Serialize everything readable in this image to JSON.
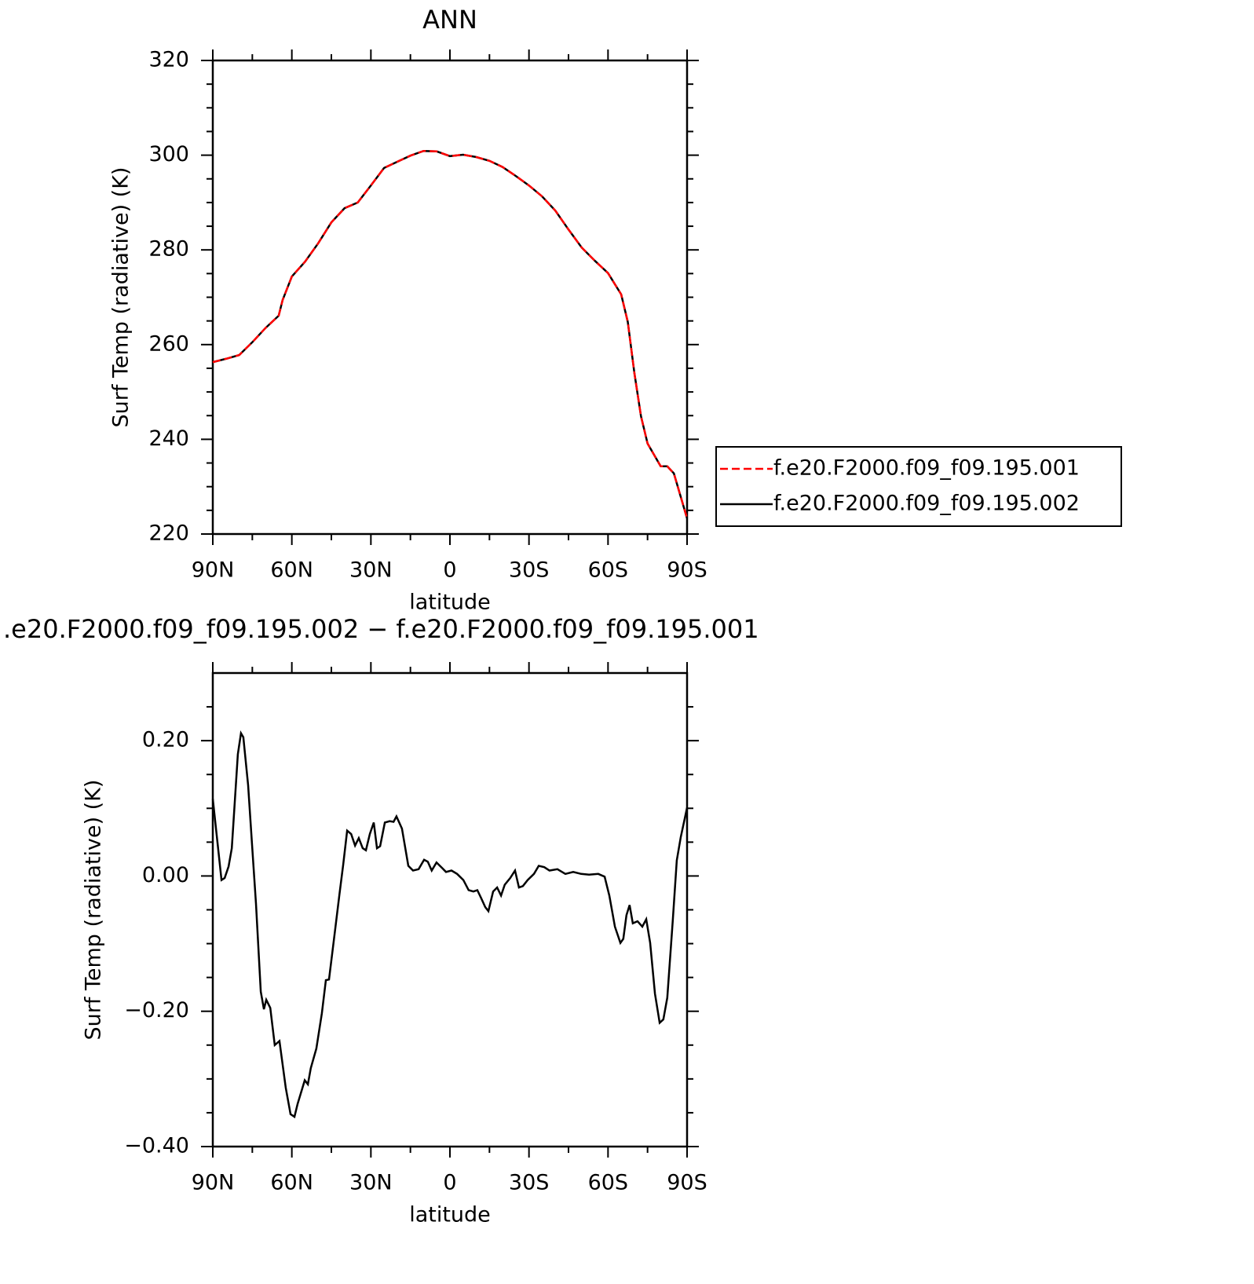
{
  "chart_data": [
    {
      "type": "line",
      "title": "ANN",
      "xlabel": "latitude",
      "ylabel": "Surf Temp (radiative) (K)",
      "xlim": [
        90,
        -90
      ],
      "xticks": [
        {
          "value": 90,
          "label": "90N"
        },
        {
          "value": 60,
          "label": "60N"
        },
        {
          "value": 30,
          "label": "30N"
        },
        0,
        {
          "value": -30,
          "label": "30S"
        },
        {
          "value": -60,
          "label": "60S"
        },
        {
          "value": -90,
          "label": "90S"
        }
      ],
      "xminor": [
        75,
        45,
        15,
        -15,
        -45,
        -75
      ],
      "ylim": [
        220,
        320
      ],
      "yticks": [
        220,
        240,
        260,
        280,
        300,
        320
      ],
      "yminor": [
        225,
        230,
        235,
        245,
        250,
        255,
        265,
        270,
        275,
        285,
        290,
        295,
        305,
        310,
        315
      ],
      "legend": "right",
      "x": [
        90,
        85,
        80,
        75,
        70,
        65,
        63.5,
        60,
        55,
        50,
        45,
        40,
        35,
        30,
        25,
        20,
        15,
        10,
        5,
        0,
        -5,
        -10,
        -15,
        -20,
        -25,
        -30,
        -35,
        -40,
        -45,
        -50,
        -55,
        -60,
        -65,
        -67.5,
        -70,
        -72.5,
        -75,
        -80,
        -82.5,
        -85,
        -90
      ],
      "series": [
        {
          "name": "f.e20.F2000.f09_f09.195.001",
          "color": "#ff0000",
          "dash": true,
          "values": [
            256.3,
            257.0,
            257.8,
            260.5,
            263.5,
            266.1,
            269.4,
            274.4,
            277.5,
            281.4,
            285.8,
            288.8,
            290.0,
            293.6,
            297.3,
            298.6,
            299.9,
            300.9,
            300.8,
            299.8,
            300.1,
            299.6,
            298.8,
            297.5,
            295.6,
            293.6,
            291.3,
            288.3,
            284.3,
            280.5,
            277.7,
            275.1,
            270.6,
            264.8,
            254.0,
            244.9,
            239.1,
            234.3,
            234.3,
            232.8,
            223.3
          ]
        },
        {
          "name": "f.e20.F2000.f09_f09.195.002",
          "color": "#000000",
          "dash": false,
          "values": [
            256.3,
            257.0,
            257.8,
            260.5,
            263.5,
            266.1,
            269.4,
            274.4,
            277.5,
            281.4,
            285.8,
            288.8,
            290.0,
            293.6,
            297.3,
            298.6,
            299.9,
            300.9,
            300.8,
            299.8,
            300.1,
            299.6,
            298.8,
            297.5,
            295.6,
            293.6,
            291.3,
            288.3,
            284.3,
            280.5,
            277.7,
            275.1,
            270.6,
            264.8,
            254.0,
            244.9,
            239.1,
            234.3,
            234.3,
            232.8,
            223.3
          ]
        }
      ]
    },
    {
      "type": "line",
      "title": ".e20.F2000.f09_f09.195.002 − f.e20.F2000.f09_f09.195.001",
      "xlabel": "latitude",
      "ylabel": "Surf Temp (radiative) (K)",
      "xlim": [
        90,
        -90
      ],
      "xticks": [
        {
          "value": 90,
          "label": "90N"
        },
        {
          "value": 60,
          "label": "60N"
        },
        {
          "value": 30,
          "label": "30N"
        },
        0,
        {
          "value": -30,
          "label": "30S"
        },
        {
          "value": -60,
          "label": "60S"
        },
        {
          "value": -90,
          "label": "90S"
        }
      ],
      "xminor": [
        75,
        45,
        15,
        -15,
        -45,
        -75
      ],
      "ylim": [
        -0.4,
        0.3
      ],
      "yticks": [
        {
          "value": -0.4,
          "label": "−0.40"
        },
        {
          "value": -0.2,
          "label": "−0.20"
        },
        {
          "value": 0,
          "label": "0.00"
        },
        {
          "value": 0.2,
          "label": "0.20"
        }
      ],
      "yminor": [
        -0.35,
        -0.3,
        -0.25,
        -0.15,
        -0.1,
        -0.05,
        0.05,
        0.1,
        0.15,
        0.25
      ],
      "x": [
        90,
        86.7,
        85.5,
        84.0,
        82.8,
        80.5,
        79.3,
        78.4,
        76.6,
        75.1,
        73.6,
        71.8,
        70.6,
        69.7,
        68.2,
        66.5,
        64.7,
        62.3,
        60.5,
        59.0,
        57.8,
        55.1,
        53.9,
        52.8,
        50.7,
        48.6,
        47.1,
        45.9,
        43.8,
        42.0,
        40.5,
        39.0,
        37.5,
        36.0,
        34.6,
        33.1,
        31.9,
        30.4,
        28.9,
        27.7,
        26.5,
        24.7,
        22.9,
        21.4,
        20.3,
        18.2,
        15.8,
        14.0,
        11.9,
        9.8,
        8.4,
        6.9,
        5.1,
        3.0,
        1.5,
        -0.6,
        -2.7,
        -5.1,
        -7.1,
        -8.9,
        -10.4,
        -11.9,
        -13.4,
        -14.6,
        -16.4,
        -17.9,
        -19.4,
        -20.8,
        -22.9,
        -24.7,
        -26.2,
        -27.7,
        -29.5,
        -31.9,
        -33.7,
        -35.8,
        -37.8,
        -40.8,
        -43.8,
        -46.8,
        -49.8,
        -52.8,
        -56.3,
        -58.7,
        -60.5,
        -62.6,
        -64.7,
        -65.8,
        -67.0,
        -68.2,
        -69.4,
        -71.2,
        -73.0,
        -74.5,
        -76.0,
        -77.8,
        -79.6,
        -81.0,
        -82.5,
        -84.6,
        -86.1,
        -87.6,
        -90
      ],
      "series": [
        {
          "color": "#000000",
          "dash": false,
          "values": [
            0.114,
            -0.006,
            -0.003,
            0.014,
            0.041,
            0.18,
            0.211,
            0.205,
            0.134,
            0.046,
            -0.041,
            -0.171,
            -0.197,
            -0.183,
            -0.195,
            -0.25,
            -0.244,
            -0.313,
            -0.352,
            -0.356,
            -0.337,
            -0.302,
            -0.308,
            -0.284,
            -0.255,
            -0.203,
            -0.154,
            -0.153,
            -0.087,
            -0.029,
            0.017,
            0.067,
            0.062,
            0.045,
            0.056,
            0.041,
            0.038,
            0.062,
            0.079,
            0.041,
            0.044,
            0.079,
            0.081,
            0.08,
            0.088,
            0.07,
            0.015,
            0.008,
            0.01,
            0.024,
            0.021,
            0.008,
            0.02,
            0.012,
            0.006,
            0.008,
            0.003,
            -0.006,
            -0.021,
            -0.023,
            -0.021,
            -0.033,
            -0.046,
            -0.052,
            -0.023,
            -0.017,
            -0.029,
            -0.013,
            -0.003,
            0.008,
            -0.017,
            -0.015,
            -0.006,
            0.003,
            0.015,
            0.013,
            0.008,
            0.01,
            0.003,
            0.006,
            0.003,
            0.002,
            0.003,
            -0.001,
            -0.029,
            -0.075,
            -0.099,
            -0.093,
            -0.058,
            -0.043,
            -0.07,
            -0.067,
            -0.075,
            -0.064,
            -0.099,
            -0.174,
            -0.217,
            -0.212,
            -0.18,
            -0.064,
            0.023,
            0.057,
            0.101
          ]
        }
      ]
    }
  ]
}
